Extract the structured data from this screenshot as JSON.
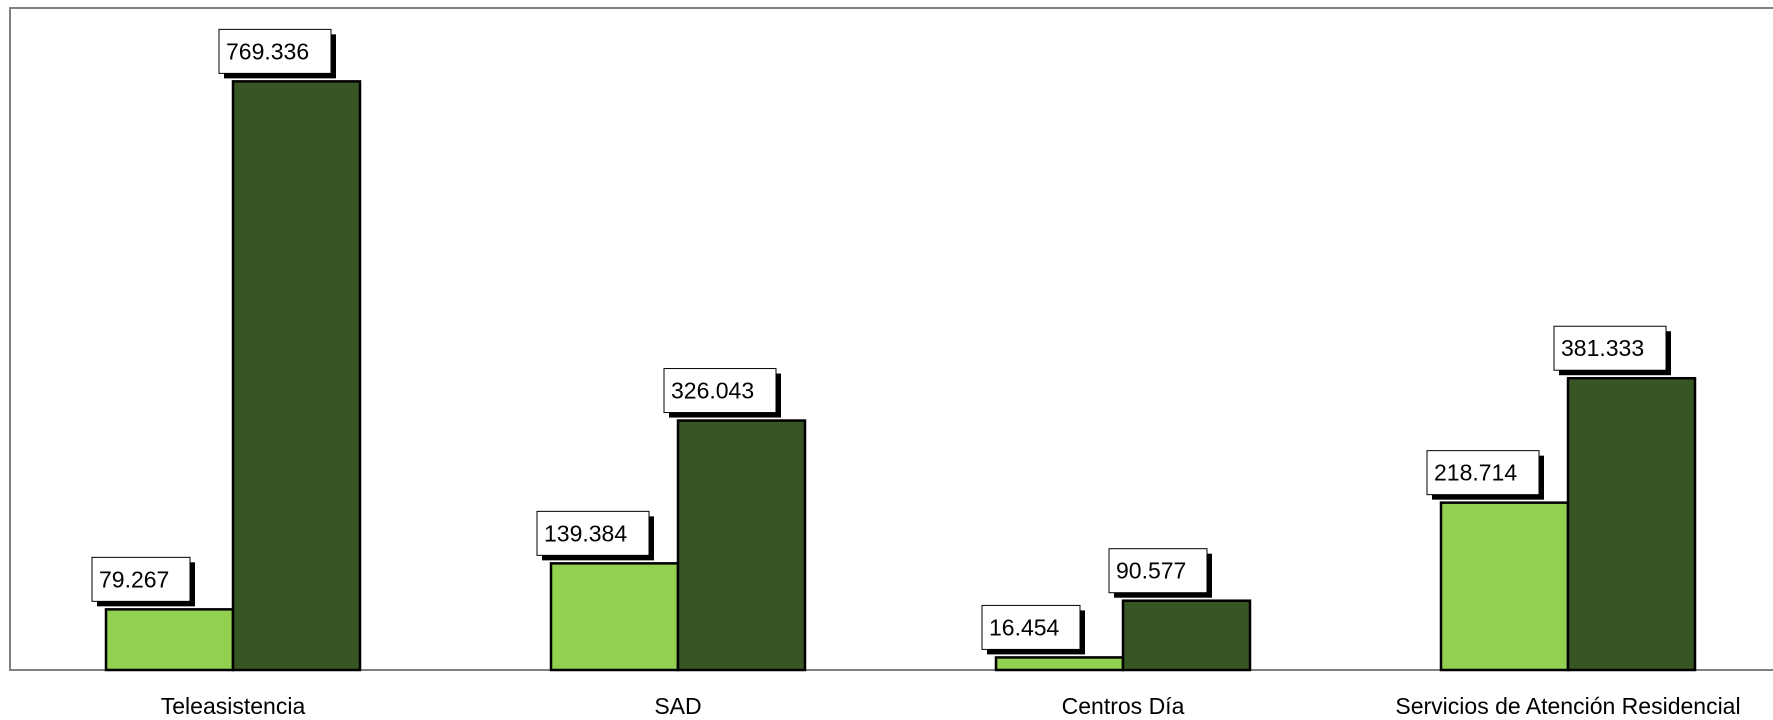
{
  "chart_data": {
    "type": "bar",
    "categories": [
      "Teleasistencia",
      "SAD",
      "Centros Día",
      "Servicios de Atención Residencial"
    ],
    "series": [
      {
        "values": [
          79267,
          139384,
          16454,
          218714
        ],
        "labels": [
          "79.267",
          "139.384",
          "16.454",
          "218.714"
        ],
        "color": "#92d050"
      },
      {
        "values": [
          769336,
          326043,
          90577,
          381333
        ],
        "labels": [
          "769.336",
          "326.043",
          "90.577",
          "381.333"
        ],
        "color": "#375623"
      }
    ],
    "ylim": [
      0,
      860000
    ],
    "grid": false,
    "legend": "none",
    "title": "",
    "xlabel": "",
    "ylabel": ""
  }
}
